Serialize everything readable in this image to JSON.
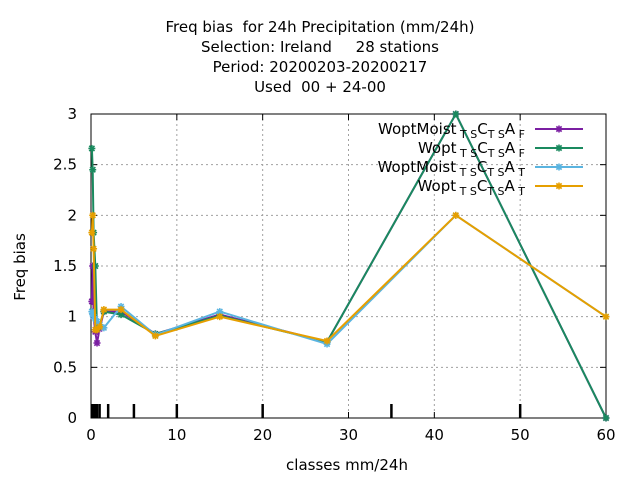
{
  "title_lines": [
    "Freq bias  for 24h Precipitation (mm/24h)",
    "Selection: Ireland     28 stations",
    "Period: 20200203-20200217",
    "Used  00 + 24-00"
  ],
  "colors": {
    "grid": "#a0a0a0",
    "axis": "#000000"
  },
  "chart_data": {
    "type": "line",
    "xlabel": "classes mm/24h",
    "ylabel": "Freq bias",
    "xlim": [
      0,
      60
    ],
    "ylim": [
      0,
      3
    ],
    "xticks": [
      0,
      10,
      20,
      30,
      40,
      50,
      60
    ],
    "yticks": [
      0,
      0.5,
      1,
      1.5,
      2,
      2.5,
      3
    ],
    "xtick_labels": [
      "0",
      "10",
      "20",
      "30",
      "40",
      "50",
      "60"
    ],
    "ytick_labels": [
      "0",
      "0.5",
      "1",
      "1.5",
      "2",
      "2.5",
      "3"
    ],
    "class_marks": [
      0.1,
      0.2,
      0.3,
      0.5,
      0.7,
      1,
      2,
      5,
      10,
      20,
      35,
      50
    ],
    "grid": true,
    "legend_position": "top-right",
    "series": [
      {
        "name_base": "WoptMoist",
        "name_sub_last": "F",
        "color": "#7b1fa2",
        "x": [
          0.1,
          0.2,
          0.3,
          0.5,
          0.7,
          1,
          1.5,
          3.5,
          7.5,
          15,
          27.5,
          42.5,
          60
        ],
        "y": [
          1.15,
          1.5,
          1.0,
          0.85,
          0.74,
          0.88,
          1.05,
          1.05,
          0.83,
          1.02,
          0.75,
          3.0,
          0.0
        ]
      },
      {
        "name_base": "Wopt",
        "name_sub_last": "F",
        "color": "#1a8a5f",
        "x": [
          0.1,
          0.2,
          0.3,
          0.5,
          0.7,
          1,
          1.5,
          3.5,
          7.5,
          15,
          27.5,
          42.5,
          60
        ],
        "y": [
          2.66,
          2.45,
          1.83,
          1.5,
          0.88,
          0.92,
          1.05,
          1.02,
          0.83,
          1.01,
          0.75,
          3.0,
          0.0
        ]
      },
      {
        "name_base": "WoptMoist",
        "name_sub_last": "T",
        "color": "#5ab4e0",
        "x": [
          0.1,
          0.2,
          0.3,
          0.5,
          0.7,
          1,
          1.5,
          3.5,
          7.5,
          15,
          27.5,
          42.5,
          60
        ],
        "y": [
          1.05,
          1.02,
          1.0,
          0.98,
          0.95,
          0.92,
          0.89,
          1.1,
          0.82,
          1.05,
          0.73,
          2.0,
          1.0
        ]
      },
      {
        "name_base": "Wopt",
        "name_sub_last": "T",
        "color": "#e69f00",
        "x": [
          0.1,
          0.2,
          0.3,
          0.5,
          0.7,
          1,
          1.5,
          3.5,
          7.5,
          15,
          27.5,
          42.5,
          60
        ],
        "y": [
          1.83,
          2.0,
          1.67,
          0.87,
          0.87,
          0.9,
          1.07,
          1.07,
          0.81,
          1.0,
          0.76,
          2.0,
          1.0
        ]
      }
    ]
  }
}
